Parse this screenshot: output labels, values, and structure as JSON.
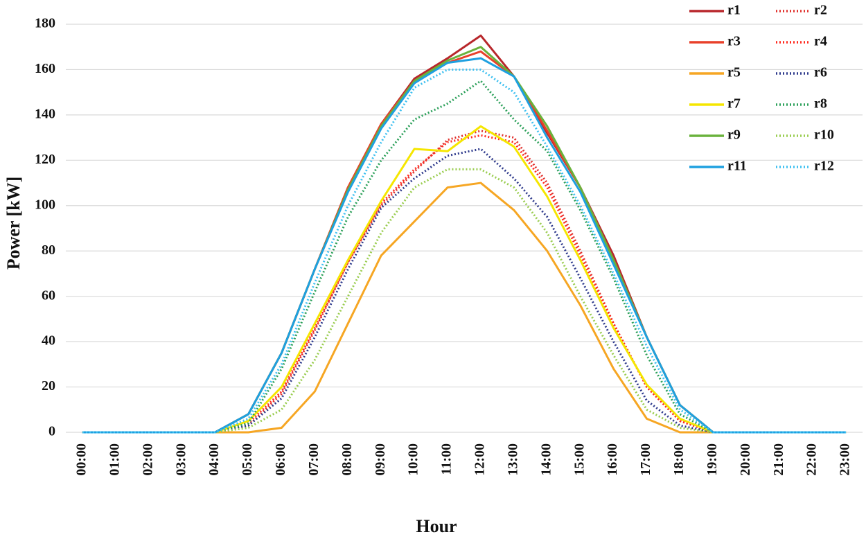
{
  "chart_data": {
    "type": "line",
    "x_label": "Hour",
    "y_label": "Power [kW]",
    "categories": [
      "00:00",
      "01:00",
      "02:00",
      "03:00",
      "04:00",
      "05:00",
      "06:00",
      "07:00",
      "08:00",
      "09:00",
      "10:00",
      "11:00",
      "12:00",
      "13:00",
      "14:00",
      "15:00",
      "16:00",
      "17:00",
      "18:00",
      "19:00",
      "20:00",
      "21:00",
      "22:00",
      "23:00"
    ],
    "series": [
      {
        "name": "r1",
        "color": "#b8272b",
        "line_style": "solid",
        "values": [
          0,
          0,
          0,
          0,
          0,
          8,
          35,
          72,
          108,
          136,
          156,
          165,
          175,
          157,
          132,
          108,
          78,
          42,
          12,
          0,
          0,
          0,
          0,
          0
        ]
      },
      {
        "name": "r2",
        "color": "#e0302c",
        "line_style": "dotted",
        "values": [
          0,
          0,
          0,
          0,
          0,
          3,
          17,
          45,
          75,
          100,
          115,
          129,
          133,
          130,
          110,
          80,
          48,
          20,
          5,
          0,
          0,
          0,
          0,
          0
        ]
      },
      {
        "name": "r3",
        "color": "#e8402a",
        "line_style": "solid",
        "values": [
          0,
          0,
          0,
          0,
          0,
          8,
          35,
          72,
          108,
          136,
          155,
          163,
          168,
          157,
          133,
          108,
          76,
          42,
          12,
          0,
          0,
          0,
          0,
          0
        ]
      },
      {
        "name": "r4",
        "color": "#ff2a1f",
        "line_style": "dotted",
        "values": [
          0,
          0,
          0,
          0,
          0,
          4,
          18,
          46,
          75,
          101,
          116,
          128,
          131,
          128,
          108,
          78,
          48,
          20,
          5,
          0,
          0,
          0,
          0,
          0
        ]
      },
      {
        "name": "r5",
        "color": "#f6a623",
        "line_style": "solid",
        "values": [
          0,
          0,
          0,
          0,
          0,
          0,
          2,
          18,
          48,
          78,
          93,
          108,
          110,
          98,
          80,
          56,
          28,
          6,
          0,
          0,
          0,
          0,
          0,
          0
        ]
      },
      {
        "name": "r6",
        "color": "#2e3a8c",
        "line_style": "dotted",
        "values": [
          0,
          0,
          0,
          0,
          0,
          3,
          15,
          42,
          72,
          99,
          112,
          122,
          125,
          112,
          95,
          68,
          40,
          14,
          3,
          0,
          0,
          0,
          0,
          0
        ]
      },
      {
        "name": "r7",
        "color": "#f5e600",
        "line_style": "solid",
        "values": [
          0,
          0,
          0,
          0,
          0,
          5,
          20,
          48,
          76,
          102,
          125,
          124,
          135,
          126,
          104,
          76,
          46,
          21,
          6,
          0,
          0,
          0,
          0,
          0
        ]
      },
      {
        "name": "r8",
        "color": "#2ca05a",
        "line_style": "dotted",
        "values": [
          0,
          0,
          0,
          0,
          0,
          4,
          28,
          62,
          95,
          120,
          138,
          145,
          155,
          138,
          124,
          98,
          68,
          34,
          8,
          0,
          0,
          0,
          0,
          0
        ]
      },
      {
        "name": "r9",
        "color": "#6ab23c",
        "line_style": "solid",
        "values": [
          0,
          0,
          0,
          0,
          0,
          8,
          35,
          72,
          107,
          135,
          155,
          164,
          170,
          157,
          135,
          108,
          76,
          42,
          12,
          0,
          0,
          0,
          0,
          0
        ]
      },
      {
        "name": "r10",
        "color": "#9acd50",
        "line_style": "dotted",
        "values": [
          0,
          0,
          0,
          0,
          0,
          2,
          10,
          32,
          60,
          88,
          108,
          116,
          116,
          108,
          88,
          60,
          34,
          10,
          2,
          0,
          0,
          0,
          0,
          0
        ]
      },
      {
        "name": "r11",
        "color": "#1ea0e0",
        "line_style": "solid",
        "values": [
          0,
          0,
          0,
          0,
          0,
          8,
          35,
          72,
          106,
          134,
          154,
          163,
          165,
          157,
          130,
          106,
          74,
          42,
          12,
          0,
          0,
          0,
          0,
          0
        ]
      },
      {
        "name": "r12",
        "color": "#3ec0f0",
        "line_style": "dotted",
        "values": [
          0,
          0,
          0,
          0,
          0,
          6,
          30,
          66,
          100,
          128,
          152,
          160,
          160,
          150,
          126,
          100,
          70,
          38,
          10,
          0,
          0,
          0,
          0,
          0
        ]
      }
    ],
    "ylim": [
      0,
      180
    ],
    "yticks": [
      0,
      20,
      40,
      60,
      80,
      100,
      120,
      140,
      160,
      180
    ],
    "grid": true,
    "legend": "top-right"
  }
}
